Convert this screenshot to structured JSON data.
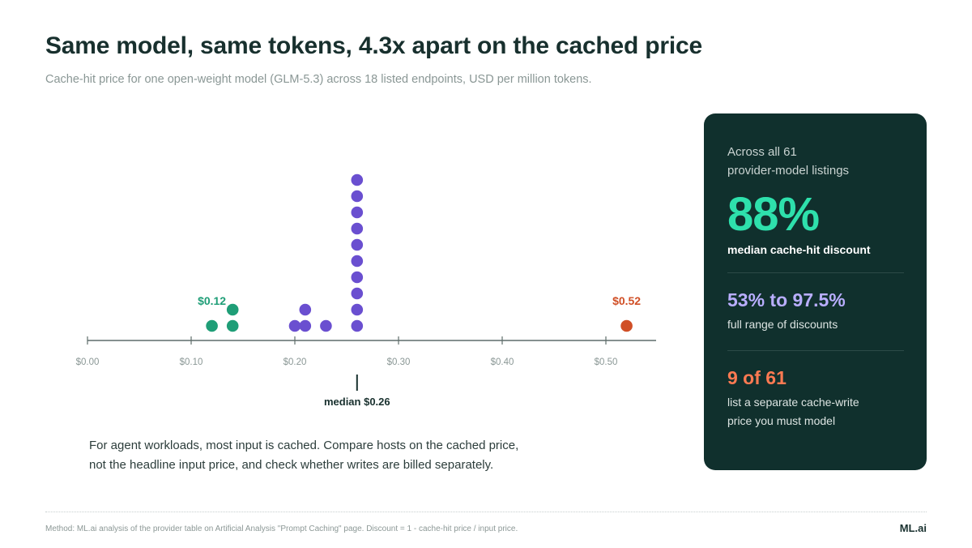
{
  "title": "Same model, same tokens, 4.3x apart on the cached price",
  "subtitle": "Cache-hit price for one open-weight model (GLM-5.3) across 18 listed endpoints, USD per million tokens.",
  "note": {
    "line1": "For agent workloads, most input is cached. Compare hosts on the cached price,",
    "line2": "not the headline input price, and check whether writes are billed separately."
  },
  "card": {
    "intro_line1": "Across all 61",
    "intro_line2": "provider-model listings",
    "big_stat": "88%",
    "big_label": "median cache-hit discount",
    "stat2": "53% to 97.5%",
    "stat2_label": "full range of discounts",
    "stat3": "9 of 61",
    "stat3_label_line1": "list a separate cache-write",
    "stat3_label_line2": "price you must model"
  },
  "footer": {
    "method": "Method: ML.ai analysis of the provider table on Artificial Analysis \"Prompt Caching\" page. Discount = 1 - cache-hit price / input price.",
    "brand": "ML.ai"
  },
  "colors": {
    "low": "#1f9e77",
    "mid": "#6a4fd0",
    "high": "#d04f26",
    "axis": "#5f6d6b"
  },
  "chart_data": {
    "type": "scatter",
    "subtype": "dot-plot",
    "x_axis": {
      "min": 0,
      "max": 0.55,
      "ticks": [
        0,
        0.1,
        0.2,
        0.3,
        0.4,
        0.5
      ],
      "tick_labels": [
        "$0.00",
        "$0.10",
        "$0.20",
        "$0.30",
        "$0.40",
        "$0.50"
      ]
    },
    "points": [
      {
        "x": 0.12,
        "group": "low"
      },
      {
        "x": 0.14,
        "group": "low"
      },
      {
        "x": 0.14,
        "group": "low"
      },
      {
        "x": 0.2,
        "group": "mid"
      },
      {
        "x": 0.21,
        "group": "mid"
      },
      {
        "x": 0.21,
        "group": "mid"
      },
      {
        "x": 0.23,
        "group": "mid"
      },
      {
        "x": 0.26,
        "group": "mid"
      },
      {
        "x": 0.26,
        "group": "mid"
      },
      {
        "x": 0.26,
        "group": "mid"
      },
      {
        "x": 0.26,
        "group": "mid"
      },
      {
        "x": 0.26,
        "group": "mid"
      },
      {
        "x": 0.26,
        "group": "mid"
      },
      {
        "x": 0.26,
        "group": "mid"
      },
      {
        "x": 0.26,
        "group": "mid"
      },
      {
        "x": 0.26,
        "group": "mid"
      },
      {
        "x": 0.26,
        "group": "mid"
      },
      {
        "x": 0.52,
        "group": "high"
      }
    ],
    "annotations": [
      {
        "x": 0.12,
        "text": "$0.12",
        "group": "low"
      },
      {
        "x": 0.52,
        "text": "$0.52",
        "group": "high"
      }
    ],
    "median": {
      "x": 0.26,
      "text": "median $0.26"
    }
  }
}
